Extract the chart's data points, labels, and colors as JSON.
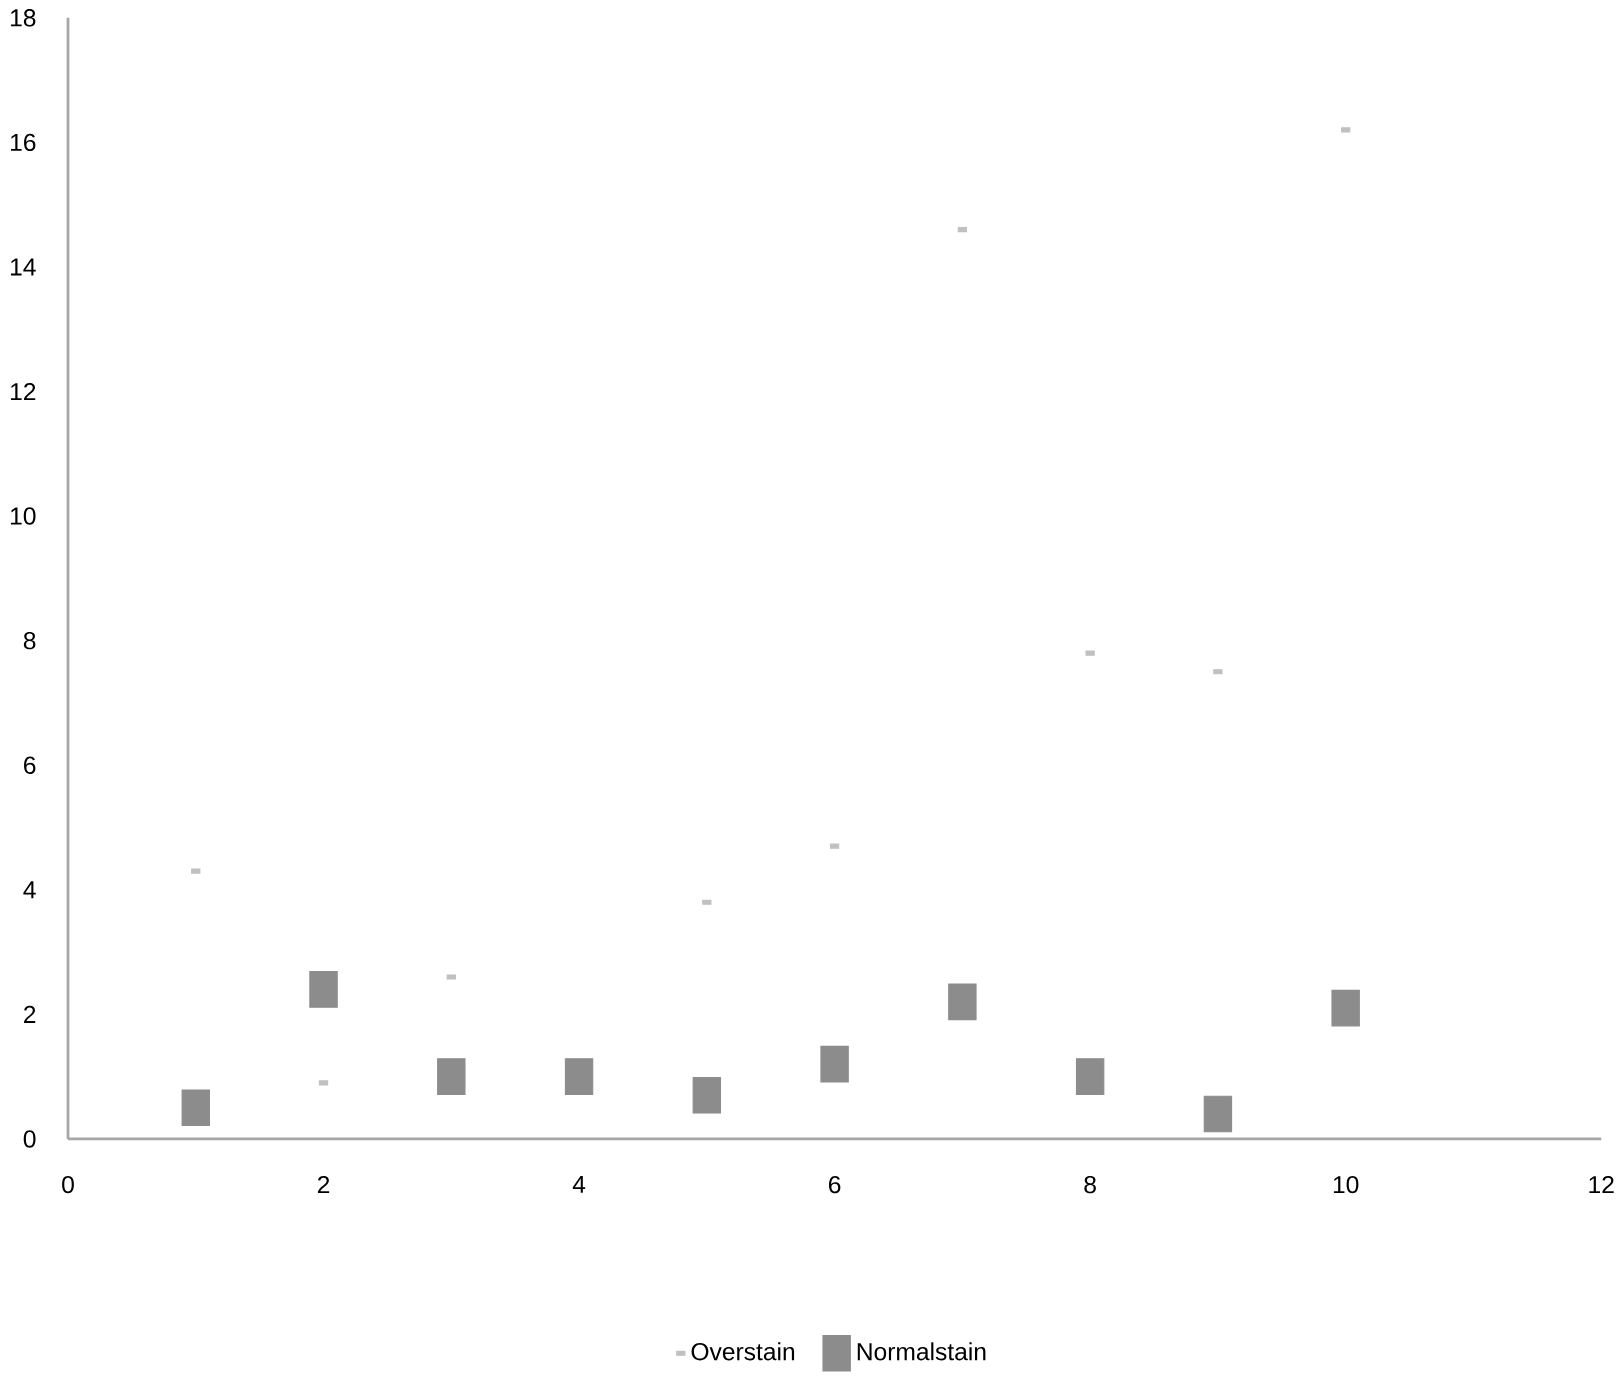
{
  "chart_data": {
    "type": "scatter",
    "xlim": [
      0,
      12
    ],
    "xticks": [
      0,
      2,
      4,
      6,
      8,
      10,
      12
    ],
    "ylim": [
      0,
      18
    ],
    "yticks": [
      0,
      2,
      4,
      6,
      8,
      10,
      12,
      14,
      16,
      18
    ],
    "grid": false,
    "legend": "bottom",
    "marker": "square",
    "series": [
      {
        "name": "Overstain",
        "color": "#c0c0c0",
        "x": [
          1,
          2,
          3,
          5,
          6,
          7,
          8,
          9,
          10
        ],
        "values": [
          4.3,
          0.9,
          2.6,
          3.8,
          4.7,
          14.6,
          7.8,
          7.5,
          16.2
        ]
      },
      {
        "name": "Normalstain",
        "color": "#8c8c8c",
        "x": [
          1,
          2,
          3,
          4,
          5,
          6,
          7,
          8,
          9,
          10
        ],
        "values": [
          0.5,
          2.4,
          1.0,
          1.0,
          0.7,
          1.2,
          2.2,
          1.0,
          0.4,
          2.1
        ]
      }
    ]
  }
}
